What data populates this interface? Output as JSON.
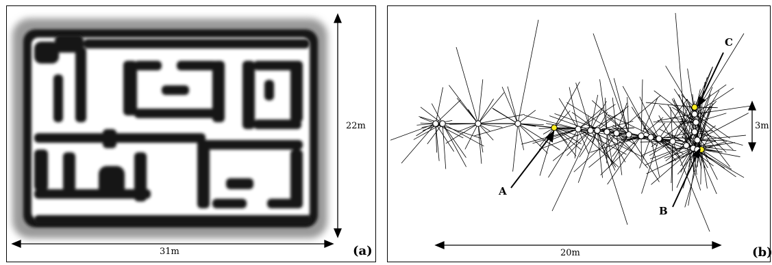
{
  "panel_a": {
    "width_label": "31m",
    "height_label": "22m",
    "tag": "(a)"
  },
  "panel_b": {
    "width_label": "20m",
    "height_label": "3m",
    "tag": "(b)",
    "point_labels": [
      "A",
      "B",
      "C"
    ]
  },
  "colors": {
    "line": "#000000",
    "highlight_node": "#ffee22",
    "node": "#ffffff"
  }
}
